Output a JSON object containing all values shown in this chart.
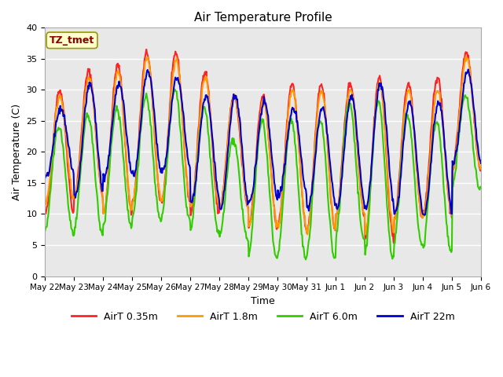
{
  "title": "Air Temperature Profile",
  "xlabel": "Time",
  "ylabel": "Air Temperature (C)",
  "ylim": [
    0,
    40
  ],
  "background_color": "#e8e8e8",
  "grid_color": "white",
  "annotation_text": "TZ_tmet",
  "annotation_color": "#8b0000",
  "annotation_bg": "#ffffcc",
  "annotation_border": "#999900",
  "series": {
    "AirT 0.35m": {
      "color": "#ff2222",
      "lw": 1.5
    },
    "AirT 1.8m": {
      "color": "#ff9900",
      "lw": 1.5
    },
    "AirT 6.0m": {
      "color": "#33cc00",
      "lw": 1.5
    },
    "AirT 22m": {
      "color": "#0000cc",
      "lw": 1.5
    }
  },
  "x_tick_labels": [
    "May 22",
    "May 23",
    "May 24",
    "May 25",
    "May 26",
    "May 27",
    "May 28",
    "May 29",
    "May 30",
    "May 31",
    "Jun 1",
    "Jun 2",
    "Jun 3",
    "Jun 4",
    "Jun 5",
    "Jun 6"
  ],
  "num_days": 15,
  "points_per_day": 48,
  "day_min_base": [
    10,
    13,
    10,
    12,
    12,
    10,
    11,
    8,
    8,
    7,
    10,
    6,
    9,
    10,
    17
  ],
  "day_max_base": [
    30,
    33,
    34,
    36,
    36,
    33,
    29,
    29,
    31,
    31,
    31,
    32,
    31,
    32,
    36
  ],
  "day_min_18": [
    12,
    13,
    10,
    12,
    12,
    11,
    11,
    8,
    8,
    7,
    10,
    7,
    9,
    10,
    17
  ],
  "day_max_18": [
    29,
    32,
    33,
    35,
    35,
    32,
    29,
    28,
    30,
    30,
    30,
    31,
    30,
    30,
    35
  ],
  "day_min_6": [
    7,
    7,
    8,
    9,
    9,
    7,
    6,
    3,
    3,
    3,
    6,
    3,
    5,
    4,
    14
  ],
  "day_max_6": [
    24,
    26,
    27,
    29,
    30,
    27,
    22,
    25,
    25,
    25,
    28,
    28,
    26,
    25,
    29
  ],
  "day_min_22": [
    16,
    13,
    16,
    16,
    17,
    12,
    11,
    12,
    13,
    11,
    11,
    11,
    10,
    10,
    18
  ],
  "day_max_22": [
    27,
    31,
    31,
    33,
    32,
    29,
    29,
    28,
    27,
    27,
    29,
    31,
    28,
    28,
    33
  ]
}
